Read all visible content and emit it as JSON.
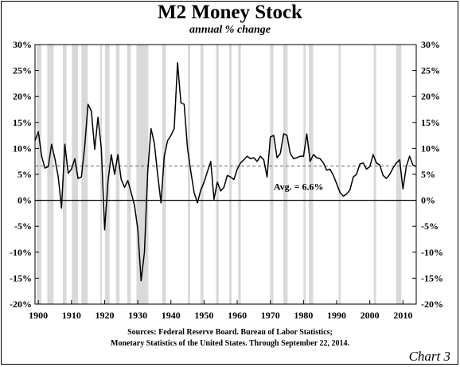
{
  "title": "M2 Money Stock",
  "subtitle": "annual % change",
  "source_line1": "Sources: Federal Reserve Board. Bureau of Labor Statistics;",
  "source_line2": "Monetary Statistics of the United States. Through September 22, 2014.",
  "chart_label": "Chart 3",
  "chart_data": {
    "type": "line",
    "title": "M2 Money Stock",
    "subtitle": "annual % change",
    "xlim": [
      1899,
      2014
    ],
    "ylim": [
      -20,
      30
    ],
    "x_ticks": [
      1900,
      1910,
      1920,
      1930,
      1940,
      1950,
      1960,
      1970,
      1980,
      1990,
      2000,
      2010
    ],
    "y_ticks": [
      -20,
      -15,
      -10,
      -5,
      0,
      5,
      10,
      15,
      20,
      25,
      30
    ],
    "y_tick_labels": [
      "-20%",
      "-15%",
      "-10%",
      "-5%",
      "0%",
      "5%",
      "10%",
      "15%",
      "20%",
      "25%",
      "30%"
    ],
    "grid": false,
    "recession_shading": [
      [
        1899.5,
        1900.9
      ],
      [
        1902.7,
        1904.6
      ],
      [
        1907.4,
        1908.5
      ],
      [
        1910.1,
        1912.0
      ],
      [
        1913.0,
        1914.9
      ],
      [
        1918.7,
        1919.2
      ],
      [
        1920.1,
        1921.5
      ],
      [
        1923.4,
        1924.5
      ],
      [
        1926.8,
        1927.9
      ],
      [
        1929.6,
        1933.2
      ],
      [
        1937.4,
        1938.5
      ],
      [
        1945.1,
        1945.8
      ],
      [
        1948.9,
        1949.8
      ],
      [
        1953.6,
        1954.4
      ],
      [
        1957.6,
        1958.3
      ],
      [
        1960.3,
        1961.1
      ],
      [
        1969.9,
        1970.9
      ],
      [
        1973.9,
        1975.2
      ],
      [
        1980.0,
        1980.6
      ],
      [
        1981.6,
        1982.9
      ],
      [
        1990.6,
        1991.2
      ],
      [
        2001.2,
        2001.9
      ],
      [
        2008.0,
        2009.5
      ]
    ],
    "average": {
      "value": 6.6,
      "label": "Avg. = 6.6%"
    },
    "colors": {
      "line": "#000000",
      "shading": "#d9d9d9",
      "average_line": "#666666"
    },
    "series": [
      {
        "x": [
          1899,
          1900,
          1901,
          1902,
          1903,
          1904,
          1905,
          1906,
          1907,
          1908,
          1909,
          1910,
          1911,
          1912,
          1913,
          1914,
          1915,
          1916,
          1917,
          1918,
          1919,
          1920,
          1921,
          1922,
          1923,
          1924,
          1925,
          1926,
          1927,
          1928,
          1929,
          1930,
          1931,
          1932,
          1933,
          1934,
          1935,
          1936,
          1937,
          1938,
          1939,
          1940,
          1941,
          1942,
          1943,
          1944,
          1945,
          1946,
          1947,
          1948,
          1949,
          1950,
          1951,
          1952,
          1953,
          1954,
          1955,
          1956,
          1957,
          1958,
          1959,
          1960,
          1961,
          1962,
          1963,
          1964,
          1965,
          1966,
          1967,
          1968,
          1969,
          1970,
          1971,
          1972,
          1973,
          1974,
          1975,
          1976,
          1977,
          1978,
          1979,
          1980,
          1981,
          1982,
          1983,
          1984,
          1985,
          1986,
          1987,
          1988,
          1989,
          1990,
          1991,
          1992,
          1993,
          1994,
          1995,
          1996,
          1997,
          1998,
          1999,
          2000,
          2001,
          2002,
          2003,
          2004,
          2005,
          2006,
          2007,
          2008,
          2009,
          2010,
          2011,
          2012,
          2013,
          2014
        ],
        "values": [
          11.5,
          13.2,
          8.5,
          6.2,
          6.5,
          10.8,
          8.0,
          4.5,
          -1.5,
          10.8,
          5.2,
          6.0,
          8.0,
          4.2,
          4.5,
          10.5,
          18.5,
          17.2,
          9.8,
          16.0,
          10.0,
          -5.7,
          3.5,
          8.8,
          5.0,
          8.8,
          4.0,
          2.5,
          3.8,
          1.5,
          -1.0,
          -5.5,
          -15.5,
          -10.0,
          5.5,
          13.8,
          11.0,
          5.0,
          -0.5,
          8.5,
          11.5,
          12.5,
          13.8,
          26.5,
          18.8,
          18.5,
          10.0,
          5.5,
          1.5,
          -0.5,
          2.0,
          3.5,
          5.5,
          7.5,
          0.2,
          3.5,
          1.8,
          2.5,
          4.8,
          4.5,
          4.0,
          6.0,
          7.2,
          7.8,
          8.5,
          8.0,
          8.2,
          7.5,
          8.5,
          7.8,
          4.5,
          12.2,
          12.5,
          8.2,
          9.0,
          12.8,
          12.5,
          9.0,
          8.0,
          8.2,
          8.5,
          8.5,
          12.8,
          7.5,
          8.8,
          8.2,
          8.0,
          7.2,
          5.8,
          6.0,
          4.8,
          3.2,
          1.5,
          0.8,
          1.2,
          2.0,
          4.5,
          5.0,
          7.0,
          7.2,
          6.0,
          6.5,
          8.8,
          7.2,
          6.8,
          4.8,
          4.2,
          5.0,
          6.2,
          7.2,
          7.8,
          2.2,
          6.5,
          8.5,
          6.8,
          6.5
        ]
      }
    ]
  }
}
